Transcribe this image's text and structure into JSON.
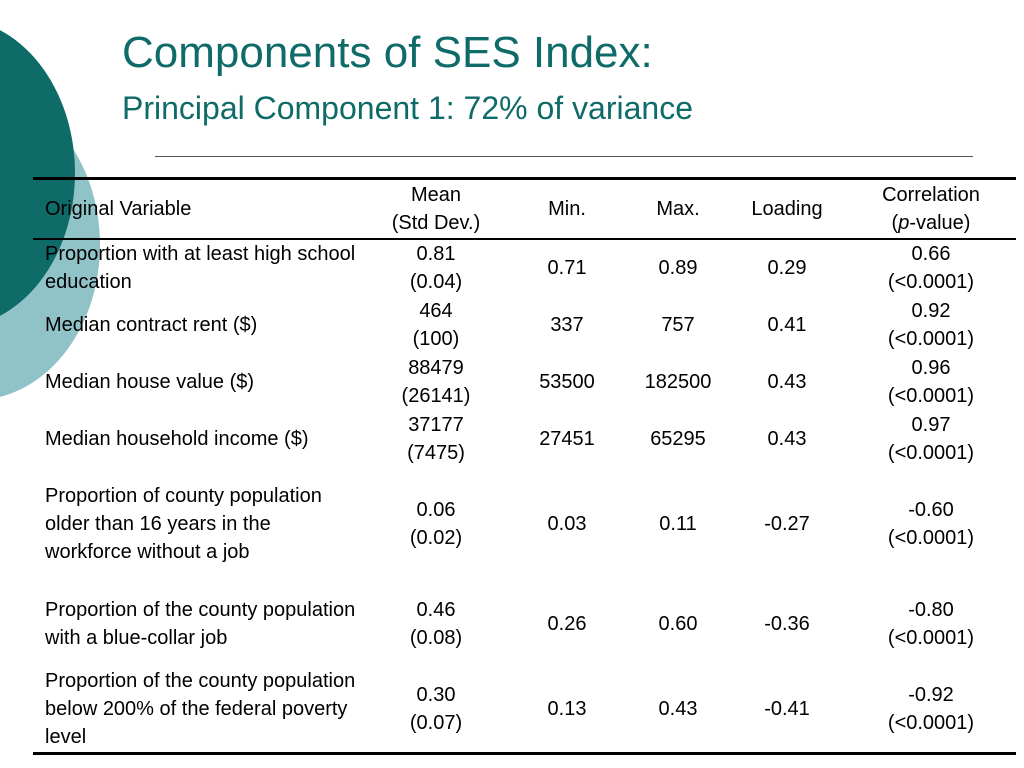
{
  "slide": {
    "title": "Components of SES Index:",
    "subtitle": "Principal Component 1: 72% of variance",
    "colors": {
      "title": "#0e6b68",
      "circle_dark": "#0e6b68",
      "circle_light": "#8fc3c8"
    }
  },
  "table": {
    "headers": {
      "variable": "Original Variable",
      "mean_line1": "Mean",
      "mean_line2": "(Std Dev.)",
      "min": "Min.",
      "max": "Max.",
      "loading": "Loading",
      "corr_line1": "Correlation",
      "corr_p": "p",
      "corr_rest": "-value)",
      "corr_open": "("
    },
    "rows": [
      {
        "variable": "Proportion with at least high school education",
        "mean": "0.81",
        "sd": "(0.04)",
        "min": "0.71",
        "max": "0.89",
        "loading": "0.29",
        "corr": "0.66",
        "p": "(<0.0001)"
      },
      {
        "variable": "Median contract rent ($)",
        "mean": "464",
        "sd": "(100)",
        "min": "337",
        "max": "757",
        "loading": "0.41",
        "corr": "0.92",
        "p": "(<0.0001)"
      },
      {
        "variable": "Median house value ($)",
        "mean": "88479",
        "sd": "(26141)",
        "min": "53500",
        "max": "182500",
        "loading": "0.43",
        "corr": "0.96",
        "p": "(<0.0001)"
      },
      {
        "variable": "Median household income ($)",
        "mean": "37177",
        "sd": "(7475)",
        "min": "27451",
        "max": "65295",
        "loading": "0.43",
        "corr": "0.97",
        "p": "(<0.0001)"
      },
      {
        "variable": "Proportion of county population older than 16 years in the workforce without a job",
        "mean": "0.06",
        "sd": "(0.02)",
        "min": "0.03",
        "max": "0.11",
        "loading": "-0.27",
        "corr": "-0.60",
        "p": "(<0.0001)"
      },
      {
        "variable": "Proportion of the county population with a blue-collar job",
        "mean": "0.46",
        "sd": "(0.08)",
        "min": "0.26",
        "max": "0.60",
        "loading": "-0.36",
        "corr": "-0.80",
        "p": "(<0.0001)"
      },
      {
        "variable": "Proportion of the county population below 200% of the federal poverty level",
        "mean": "0.30",
        "sd": "(0.07)",
        "min": "0.13",
        "max": "0.43",
        "loading": "-0.41",
        "corr": "-0.92",
        "p": "(<0.0001)"
      }
    ]
  }
}
